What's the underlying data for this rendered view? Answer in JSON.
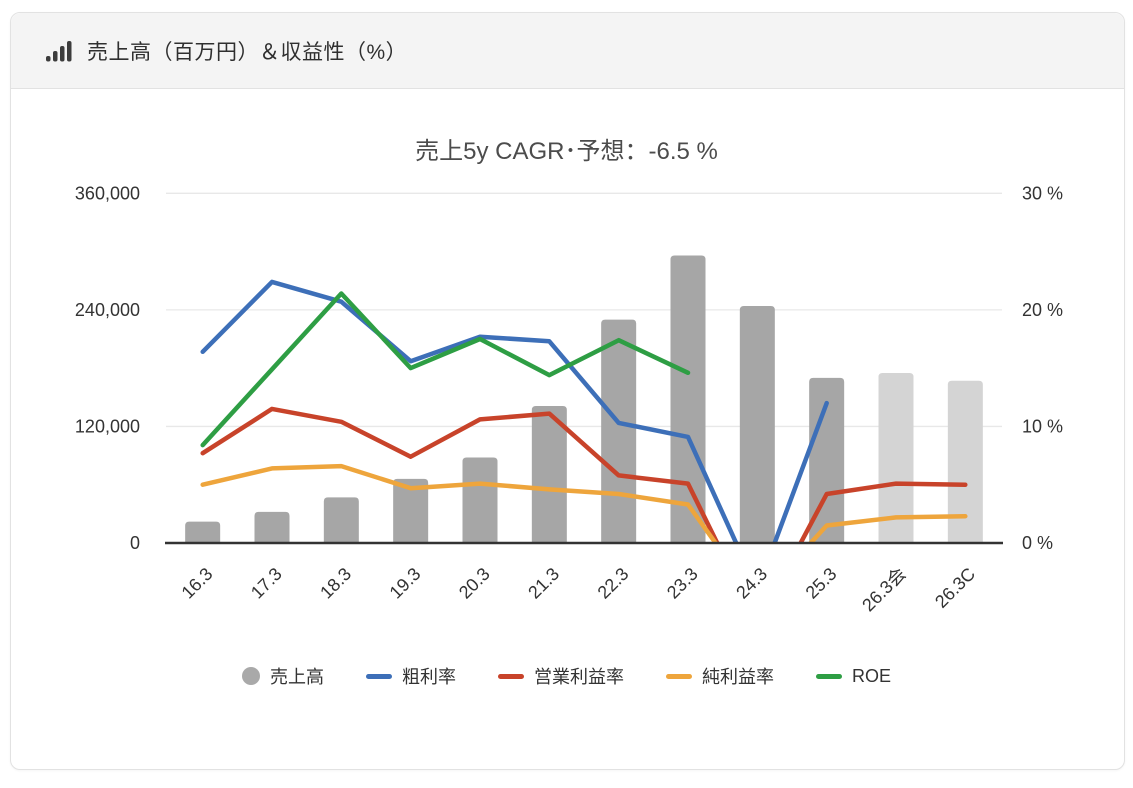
{
  "header": {
    "title": "売上高（百万円）＆収益性（%）",
    "icon": "bar-signal-icon"
  },
  "chart_data": {
    "type": "bar",
    "subtype": "combo-bar-line-dual-axis",
    "title": "売上5y CAGR･予想：-6.5 %",
    "categories": [
      "16.3",
      "17.3",
      "18.3",
      "19.3",
      "20.3",
      "21.3",
      "22.3",
      "23.3",
      "24.3",
      "25.3",
      "26.3会",
      "26.3C"
    ],
    "bar_series": {
      "name": "売上高",
      "unit": "百万円",
      "axis": "left",
      "values": [
        22000,
        32000,
        47000,
        66000,
        88000,
        141000,
        230000,
        296000,
        244000,
        170000,
        175000,
        167000
      ],
      "forecast_indices": [
        10,
        11
      ],
      "color": "#a6a6a6",
      "forecast_color": "#d4d4d4"
    },
    "line_series": [
      {
        "name": "粗利率",
        "axis": "right",
        "unit": "%",
        "color": "#3d6fb8",
        "values": [
          16.4,
          22.4,
          20.7,
          15.6,
          17.7,
          17.3,
          10.3,
          9.1,
          -4,
          12.0,
          null,
          null
        ]
      },
      {
        "name": "営業利益率",
        "axis": "right",
        "unit": "%",
        "color": "#c8432a",
        "values": [
          7.7,
          11.5,
          10.4,
          7.4,
          10.6,
          11.1,
          5.8,
          5.1,
          -7,
          4.2,
          5.1,
          5.0
        ]
      },
      {
        "name": "純利益率",
        "axis": "right",
        "unit": "%",
        "color": "#eea53c",
        "values": [
          5.0,
          6.4,
          6.6,
          4.7,
          5.1,
          4.6,
          4.2,
          3.3,
          -5,
          1.5,
          2.2,
          2.3
        ]
      },
      {
        "name": "ROE",
        "axis": "right",
        "unit": "%",
        "color": "#2e9e44",
        "values": [
          8.4,
          14.9,
          21.4,
          15.0,
          17.5,
          14.4,
          17.4,
          14.6,
          null,
          null,
          null,
          null
        ]
      }
    ],
    "left_axis": {
      "max": 360000,
      "ticks": [
        {
          "label": "0",
          "value": 0
        },
        {
          "label": "120,000",
          "value": 120000
        },
        {
          "label": "240,000",
          "value": 240000
        },
        {
          "label": "360,000",
          "value": 360000
        }
      ]
    },
    "right_axis": {
      "max": 30,
      "ticks": [
        {
          "label": "0 %",
          "value": 0
        },
        {
          "label": "10 %",
          "value": 10
        },
        {
          "label": "20 %",
          "value": 20
        },
        {
          "label": "30 %",
          "value": 30
        }
      ]
    },
    "legend": [
      {
        "label": "売上高",
        "marker": "circle",
        "color": "#a9a9a9"
      },
      {
        "label": "粗利率",
        "marker": "line",
        "color": "#3d6fb8"
      },
      {
        "label": "営業利益率",
        "marker": "line",
        "color": "#c8432a"
      },
      {
        "label": "純利益率",
        "marker": "line",
        "color": "#eea53c"
      },
      {
        "label": "ROE",
        "marker": "line",
        "color": "#2e9e44"
      }
    ]
  },
  "colors": {
    "grid": "#e8e8e8",
    "axis": "#333333",
    "tick_text": "#333333",
    "header_bg": "#f4f4f4",
    "card_border": "#e2e2e2",
    "title_text": "#4c4c4c"
  }
}
